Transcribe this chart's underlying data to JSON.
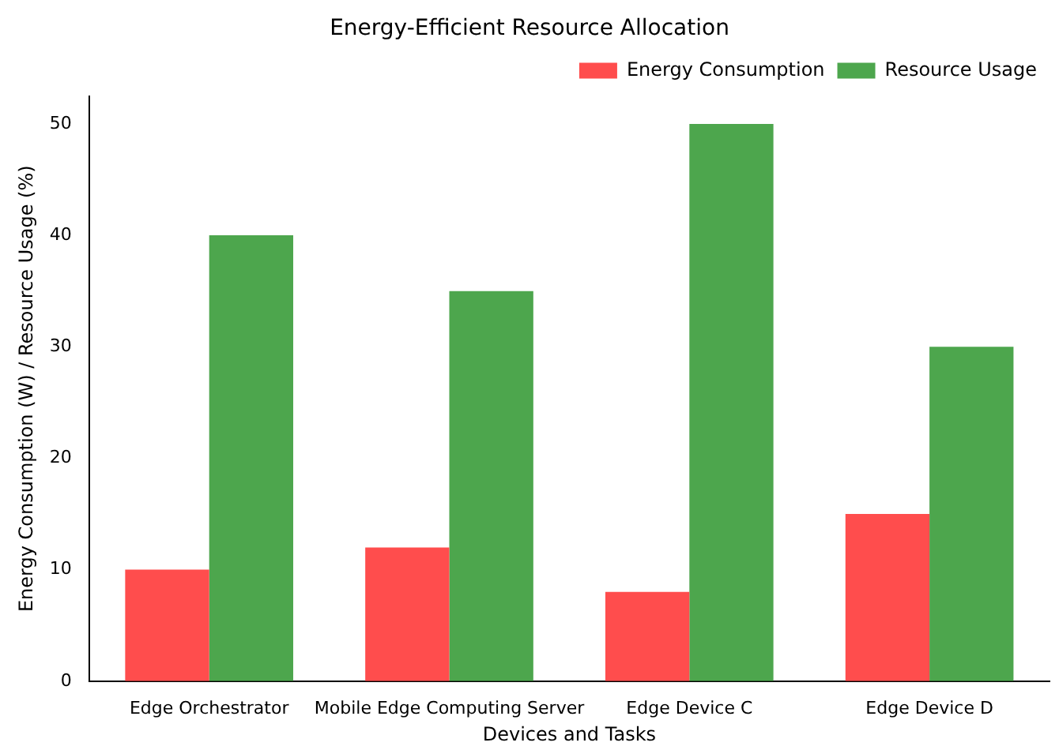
{
  "chart_data": {
    "type": "bar",
    "title": "Energy-Efficient Resource Allocation",
    "xlabel": "Devices and Tasks",
    "ylabel": "Energy Consumption (W) / Resource Usage (%)",
    "categories": [
      "Edge Orchestrator",
      "Mobile Edge Computing Server",
      "Edge Device C",
      "Edge Device D"
    ],
    "series": [
      {
        "name": "Energy Consumption",
        "color": "#ff4d4d",
        "values": [
          10,
          12,
          8,
          15
        ]
      },
      {
        "name": "Resource Usage",
        "color": "#4da64d",
        "values": [
          40,
          35,
          50,
          30
        ]
      }
    ],
    "ylim": [
      0,
      52.5
    ],
    "yticks": [
      0,
      10,
      20,
      30,
      40,
      50
    ],
    "grid": false,
    "legend": "top right"
  }
}
